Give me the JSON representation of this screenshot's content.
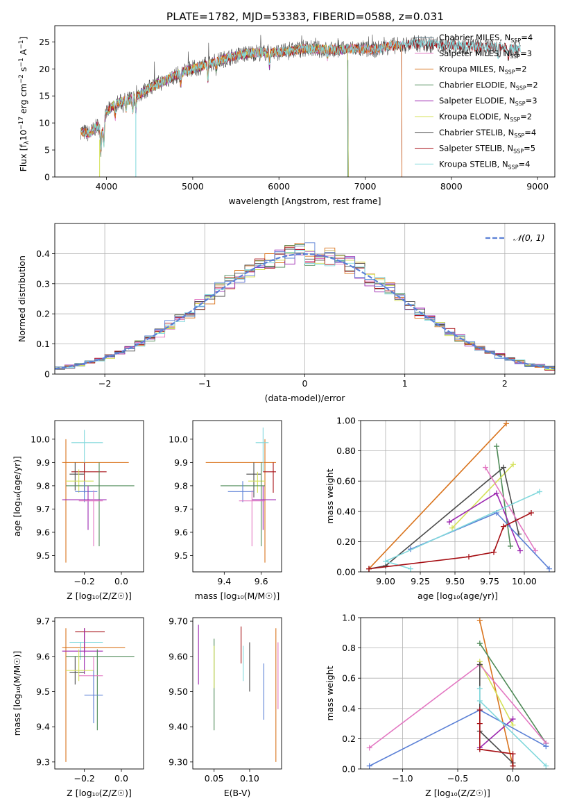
{
  "figure_title": "PLATE=1782, MJD=53383, FIBERID=0588, z=0.031",
  "colors": {
    "cm": "#607d8b",
    "sm": "#e377c2",
    "km": "#d9731c",
    "ce": "#4e8a57",
    "se": "#9c27b0",
    "ke": "#d4e157",
    "cs": "#4a4a4a",
    "ss": "#a60f14",
    "ks": "#80d8dc",
    "blue": "#5b80d6"
  },
  "chart_data": [
    {
      "id": "spectrum",
      "type": "line",
      "title": "PLATE=1782, MJD=53383, FIBERID=0588, z=0.031",
      "xlabel": "wavelength [Angstrom, rest frame]",
      "ylabel_main": "Flux [f",
      "ylabel_sub": "λ",
      "ylabel_mid": "10",
      "ylabel_sup1": "−17",
      "ylabel_end": " erg cm",
      "ylabel_sup2": "−2",
      "ylabel_s": " s",
      "ylabel_sup3": "−1",
      "ylabel_a": " A",
      "ylabel_sup4": "−1",
      "ylabel_close": "]",
      "xlim": [
        3400,
        9200
      ],
      "ylim": [
        0,
        28
      ],
      "xticks": [
        4000,
        5000,
        6000,
        7000,
        8000,
        9000
      ],
      "yticks": [
        0,
        5,
        10,
        15,
        20,
        25
      ],
      "grid": false,
      "legend_position": "top-right",
      "continuum_x": [
        3700,
        3800,
        3900,
        3950,
        4000,
        4100,
        4200,
        4300,
        4400,
        4500,
        4700,
        4900,
        5100,
        5300,
        5500,
        5700,
        5900,
        6100,
        6300,
        6500,
        6700,
        6900,
        7100,
        7300,
        7420,
        7600,
        7800,
        8000,
        8200,
        8400,
        8600,
        8800
      ],
      "continuum_y": [
        8.5,
        8.0,
        9.5,
        8.0,
        12.0,
        13.5,
        14.0,
        14.5,
        15.5,
        16.5,
        18.0,
        19.5,
        20.5,
        21.5,
        22.5,
        23.0,
        23.0,
        23.2,
        23.8,
        23.6,
        23.5,
        23.8,
        23.5,
        24.3,
        24.3,
        24.7,
        24.5,
        24.4,
        24.2,
        24.0,
        24.0,
        23.7
      ],
      "series": [
        {
          "name": "Chabrier MILES",
          "nssp": 4,
          "color_key": "cm",
          "x_end": 7420
        },
        {
          "name": "Salpeter MILES",
          "nssp": 3,
          "color_key": "sm",
          "x_end": 7420
        },
        {
          "name": "Kroupa MILES",
          "nssp": 2,
          "color_key": "km",
          "x_end": 7420
        },
        {
          "name": "Chabrier ELODIE",
          "nssp": 2,
          "color_key": "ce",
          "x_end": 6800
        },
        {
          "name": "Salpeter ELODIE",
          "nssp": 3,
          "color_key": "se",
          "x_end": 6800
        },
        {
          "name": "Kroupa ELODIE",
          "nssp": 2,
          "color_key": "ke",
          "x_end": 6800
        },
        {
          "name": "Chabrier STELIB",
          "nssp": 4,
          "color_key": "cs",
          "x_end": 8800
        },
        {
          "name": "Salpeter STELIB",
          "nssp": 5,
          "color_key": "ss",
          "x_end": 8800
        },
        {
          "name": "Kroupa STELIB",
          "nssp": 4,
          "color_key": "ks",
          "x_end": 8800
        }
      ],
      "legend_nssp_prefix": "N",
      "legend_nssp_sub": "SSP"
    },
    {
      "id": "residuals",
      "type": "histogram",
      "xlabel": "(data-model)/error",
      "ylabel": "Normed distribution",
      "xlim": [
        -2.5,
        2.5
      ],
      "ylim": [
        0,
        0.5
      ],
      "xticks": [
        -2,
        -1,
        0,
        1,
        2
      ],
      "yticks": [
        0.0,
        0.1,
        0.2,
        0.3,
        0.4
      ],
      "grid": true,
      "bin_width": 0.1,
      "gaussian_label": "𝒩(0, 1)",
      "legend_position": "top-right"
    },
    {
      "id": "age_vs_Z",
      "type": "errorbar",
      "xlabel": "Z [log₁₀(Z/Z☉)]",
      "ylabel": "age  [log₁₀(age/yr)]",
      "xlim": [
        -0.36,
        0.12
      ],
      "ylim": [
        9.43,
        10.08
      ],
      "xticks": [
        -0.2,
        0.0
      ],
      "yticks": [
        9.5,
        9.6,
        9.7,
        9.8,
        9.9,
        10.0
      ],
      "points": [
        {
          "k": "km",
          "x": -0.3,
          "xe": [
            -0.32,
            0.04
          ],
          "y": 9.9,
          "ye": [
            9.47,
            10.0
          ]
        },
        {
          "k": "ks",
          "x": -0.2,
          "xe": [
            -0.27,
            -0.1
          ],
          "y": 9.985,
          "ye": [
            9.86,
            10.04
          ]
        },
        {
          "k": "ss",
          "x": -0.2,
          "xe": [
            -0.27,
            -0.08
          ],
          "y": 9.86,
          "ye": [
            9.77,
            9.9
          ]
        },
        {
          "k": "cs",
          "x": -0.25,
          "xe": [
            -0.28,
            -0.2
          ],
          "y": 9.85,
          "ye": [
            9.78,
            9.9
          ]
        },
        {
          "k": "ke",
          "x": -0.23,
          "xe": [
            -0.3,
            -0.15
          ],
          "y": 9.82,
          "ye": [
            9.77,
            9.87
          ]
        },
        {
          "k": "ce",
          "x": -0.12,
          "xe": [
            -0.3,
            0.07
          ],
          "y": 9.8,
          "ye": [
            9.54,
            9.9
          ]
        },
        {
          "k": "blue",
          "x": -0.2,
          "xe": [
            -0.25,
            -0.13
          ],
          "y": 9.775,
          "ye": [
            9.73,
            9.82
          ]
        },
        {
          "k": "se",
          "x": -0.18,
          "xe": [
            -0.32,
            -0.08
          ],
          "y": 9.74,
          "ye": [
            9.61,
            9.8
          ]
        },
        {
          "k": "sm",
          "x": -0.15,
          "xe": [
            -0.23,
            -0.1
          ],
          "y": 9.735,
          "ye": [
            9.54,
            9.78
          ]
        }
      ]
    },
    {
      "id": "age_vs_mass",
      "type": "errorbar",
      "xlabel": "mass [log₁₀(M/M☉)]",
      "ylabel": "",
      "xlim": [
        9.23,
        9.71
      ],
      "ylim": [
        9.43,
        10.08
      ],
      "xticks": [
        9.4,
        9.6
      ],
      "yticks": [
        9.5,
        9.6,
        9.7,
        9.8,
        9.9,
        10.0
      ],
      "points": [
        {
          "k": "km",
          "x": 9.62,
          "xe": [
            9.3,
            9.68
          ],
          "y": 9.9,
          "ye": [
            9.47,
            10.0
          ]
        },
        {
          "k": "ks",
          "x": 9.61,
          "xe": [
            9.57,
            9.64
          ],
          "y": 9.985,
          "ye": [
            9.86,
            10.05
          ]
        },
        {
          "k": "ss",
          "x": 9.665,
          "xe": [
            9.61,
            9.68
          ],
          "y": 9.86,
          "ye": [
            9.77,
            9.9
          ]
        },
        {
          "k": "cs",
          "x": 9.56,
          "xe": [
            9.52,
            9.6
          ],
          "y": 9.85,
          "ye": [
            9.75,
            9.9
          ]
        },
        {
          "k": "ke",
          "x": 9.58,
          "xe": [
            9.53,
            9.62
          ],
          "y": 9.82,
          "ye": [
            9.77,
            9.86
          ]
        },
        {
          "k": "ce",
          "x": 9.6,
          "xe": [
            9.38,
            9.62
          ],
          "y": 9.8,
          "ye": [
            9.54,
            9.9
          ]
        },
        {
          "k": "blue",
          "x": 9.5,
          "xe": [
            9.42,
            9.56
          ],
          "y": 9.775,
          "ye": [
            9.73,
            9.82
          ]
        },
        {
          "k": "se",
          "x": 9.61,
          "xe": [
            9.55,
            9.68
          ],
          "y": 9.74,
          "ye": [
            9.61,
            9.8
          ]
        },
        {
          "k": "sm",
          "x": 9.55,
          "xe": [
            9.48,
            9.62
          ],
          "y": 9.735,
          "ye": [
            9.54,
            9.78
          ]
        }
      ]
    },
    {
      "id": "weight_vs_age",
      "type": "line",
      "xlabel": "age  [log₁₀(age/yr)]",
      "ylabel": "mass weight",
      "xlim": [
        8.82,
        10.22
      ],
      "ylim": [
        0,
        1
      ],
      "xticks": [
        9.0,
        9.25,
        9.5,
        9.75,
        10.0
      ],
      "yticks": [
        0.0,
        0.2,
        0.4,
        0.6,
        0.8,
        1.0
      ],
      "grid": true,
      "series": [
        {
          "k": "km",
          "x": [
            8.88,
            9.87
          ],
          "y": [
            0.02,
            0.98
          ]
        },
        {
          "k": "ce",
          "x": [
            9.8,
            9.9
          ],
          "y": [
            0.83,
            0.17
          ]
        },
        {
          "k": "ke",
          "x": [
            9.48,
            9.92
          ],
          "y": [
            0.29,
            0.71
          ]
        },
        {
          "k": "cs",
          "x": [
            8.88,
            9.0,
            9.85,
            9.96
          ],
          "y": [
            0.02,
            0.04,
            0.69,
            0.25
          ]
        },
        {
          "k": "sm",
          "x": [
            9.72,
            10.08
          ],
          "y": [
            0.69,
            0.14
          ]
        },
        {
          "k": "se",
          "x": [
            9.46,
            9.8,
            9.97
          ],
          "y": [
            0.33,
            0.52,
            0.14
          ]
        },
        {
          "k": "blue",
          "x": [
            9.18,
            9.8,
            10.18
          ],
          "y": [
            0.15,
            0.39,
            0.02
          ]
        },
        {
          "k": "ks",
          "x": [
            9.18,
            9.0,
            10.11
          ],
          "y": [
            0.02,
            0.07,
            0.53
          ]
        },
        {
          "k": "ss",
          "x": [
            8.88,
            9.6,
            9.78,
            9.85,
            10.05
          ],
          "y": [
            0.02,
            0.1,
            0.13,
            0.3,
            0.39
          ]
        }
      ]
    },
    {
      "id": "mass_vs_Z",
      "type": "errorbar",
      "xlabel": "Z [log₁₀(Z/Z☉)]",
      "ylabel": "mass [log₁₀(M/M☉)]",
      "xlim": [
        -0.36,
        0.12
      ],
      "ylim": [
        9.28,
        9.71
      ],
      "xticks": [
        -0.2,
        0.0
      ],
      "yticks": [
        9.3,
        9.4,
        9.5,
        9.6,
        9.7
      ],
      "points": [
        {
          "k": "km",
          "x": -0.3,
          "xe": [
            -0.32,
            0.02
          ],
          "y": 9.625,
          "ye": [
            9.3,
            9.68
          ]
        },
        {
          "k": "ss",
          "x": -0.2,
          "xe": [
            -0.25,
            -0.09
          ],
          "y": 9.67,
          "ye": [
            9.61,
            9.68
          ]
        },
        {
          "k": "ks",
          "x": -0.22,
          "xe": [
            -0.28,
            -0.1
          ],
          "y": 9.64,
          "ye": [
            9.59,
            9.64
          ]
        },
        {
          "k": "se",
          "x": -0.2,
          "xe": [
            -0.32,
            -0.1
          ],
          "y": 9.615,
          "ye": [
            9.55,
            9.68
          ]
        },
        {
          "k": "ce",
          "x": -0.13,
          "xe": [
            -0.3,
            0.07
          ],
          "y": 9.6,
          "ye": [
            9.39,
            9.62
          ]
        },
        {
          "k": "cs",
          "x": -0.25,
          "xe": [
            -0.28,
            -0.2
          ],
          "y": 9.555,
          "ye": [
            9.52,
            9.6
          ]
        },
        {
          "k": "ke",
          "x": -0.23,
          "xe": [
            -0.3,
            -0.15
          ],
          "y": 9.56,
          "ye": [
            9.53,
            9.62
          ]
        },
        {
          "k": "sm",
          "x": -0.15,
          "xe": [
            -0.23,
            -0.1
          ],
          "y": 9.545,
          "ye": [
            9.45,
            9.6
          ]
        },
        {
          "k": "blue",
          "x": -0.15,
          "xe": [
            -0.2,
            -0.1
          ],
          "y": 9.49,
          "ye": [
            9.41,
            9.56
          ]
        }
      ]
    },
    {
      "id": "mass_vs_ebv",
      "type": "errorbar",
      "xlabel": "E(B-V)",
      "ylabel": "",
      "xlim": [
        0.02,
        0.145
      ],
      "ylim": [
        9.28,
        9.71
      ],
      "xticks": [
        0.05,
        0.1
      ],
      "yticks": [
        9.3,
        9.4,
        9.5,
        9.6,
        9.7
      ],
      "points": [
        {
          "k": "se",
          "x": 0.028,
          "ye": [
            9.52,
            9.69
          ]
        },
        {
          "k": "ce",
          "x": 0.05,
          "ye": [
            9.39,
            9.65
          ]
        },
        {
          "k": "ke",
          "x": 0.05,
          "ye": [
            9.51,
            9.63
          ]
        },
        {
          "k": "ss",
          "x": 0.088,
          "ye": [
            9.58,
            9.685
          ]
        },
        {
          "k": "ks",
          "x": 0.091,
          "ye": [
            9.53,
            9.63
          ]
        },
        {
          "k": "cs",
          "x": 0.1,
          "ye": [
            9.5,
            9.64
          ]
        },
        {
          "k": "blue",
          "x": 0.12,
          "ye": [
            9.42,
            9.58
          ]
        },
        {
          "k": "km",
          "x": 0.137,
          "ye": [
            9.3,
            9.68
          ]
        },
        {
          "k": "sm",
          "x": 0.14,
          "ye": [
            9.45,
            9.64
          ]
        }
      ]
    },
    {
      "id": "weight_vs_Z",
      "type": "line",
      "xlabel": "Z [log₁₀(Z/Z☉)]",
      "ylabel": "mass weight",
      "xlim": [
        -1.38,
        0.38
      ],
      "ylim": [
        0,
        1
      ],
      "xticks": [
        -1.0,
        -0.5,
        0.0
      ],
      "yticks": [
        0.0,
        0.2,
        0.4,
        0.6,
        0.8,
        1.0
      ],
      "grid": true,
      "series": [
        {
          "k": "km",
          "x": [
            -0.3,
            0.0
          ],
          "y": [
            0.98,
            0.02
          ]
        },
        {
          "k": "ce",
          "x": [
            -0.3,
            0.3
          ],
          "y": [
            0.83,
            0.17
          ]
        },
        {
          "k": "ke",
          "x": [
            -0.3,
            0.0
          ],
          "y": [
            0.71,
            0.29
          ]
        },
        {
          "k": "sm",
          "x": [
            -1.3,
            -0.3,
            0.3
          ],
          "y": [
            0.14,
            0.69,
            0.17
          ]
        },
        {
          "k": "se",
          "x": [
            -0.3,
            0.0
          ],
          "y": [
            0.14,
            0.33
          ]
        },
        {
          "k": "cs",
          "x": [
            -0.3,
            -0.3,
            0.0,
            0.0
          ],
          "y": [
            0.69,
            0.25,
            0.04,
            0.02
          ]
        },
        {
          "k": "blue",
          "x": [
            -1.3,
            -0.3,
            0.3
          ],
          "y": [
            0.02,
            0.39,
            0.15
          ]
        },
        {
          "k": "ks",
          "x": [
            -0.3,
            -0.3,
            0.3
          ],
          "y": [
            0.53,
            0.45,
            0.02
          ]
        },
        {
          "k": "ss",
          "x": [
            -0.3,
            -0.3,
            -0.3,
            0.0,
            0.0
          ],
          "y": [
            0.39,
            0.3,
            0.13,
            0.1,
            0.02
          ]
        }
      ]
    }
  ]
}
